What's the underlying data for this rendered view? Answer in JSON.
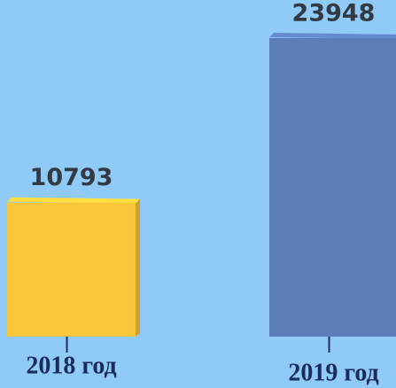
{
  "chart_data": {
    "type": "bar",
    "categories": [
      "2018 год",
      "2019 год"
    ],
    "values": [
      10793,
      23948
    ],
    "colors": [
      "#fcc63a",
      "#5b7db8"
    ]
  }
}
